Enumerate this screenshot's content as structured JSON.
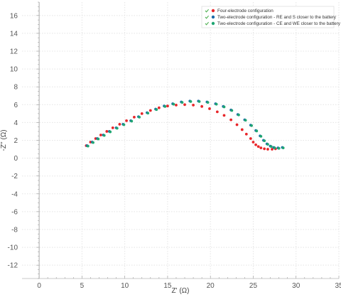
{
  "chart_data": {
    "type": "scatter",
    "xlabel": "Z' (Ω)",
    "ylabel": "-Z'' (Ω)",
    "xlim": [
      -2,
      35
    ],
    "ylim": [
      -13.5,
      17.5
    ],
    "xticks": [
      0,
      5,
      10,
      15,
      20,
      25,
      30,
      35
    ],
    "yticks": [
      -12,
      -10,
      -8,
      -6,
      -4,
      -2,
      0,
      2,
      4,
      6,
      8,
      10,
      12,
      14,
      16
    ],
    "grid": true,
    "legend_position": "top-right",
    "legend_check_color": "#4caf50",
    "series": [
      {
        "name": "Four-electrode configuration",
        "color": "#e8262a",
        "x": [
          5.5,
          6.0,
          6.6,
          7.2,
          7.9,
          8.6,
          9.4,
          10.2,
          11.1,
          12.0,
          13.0,
          14.0,
          15.0,
          16.0,
          17.0,
          18.0,
          19.0,
          19.9,
          20.8,
          21.6,
          22.4,
          23.1,
          23.7,
          24.2,
          24.7,
          25.0,
          25.3,
          25.6,
          25.9,
          26.3,
          26.7,
          27.2,
          27.6
        ],
        "y": [
          1.4,
          1.8,
          2.2,
          2.6,
          3.0,
          3.4,
          3.8,
          4.2,
          4.6,
          5.0,
          5.35,
          5.65,
          5.85,
          5.95,
          6.0,
          5.95,
          5.8,
          5.55,
          5.2,
          4.8,
          4.3,
          3.75,
          3.2,
          2.7,
          2.2,
          1.8,
          1.5,
          1.3,
          1.15,
          1.05,
          1.0,
          1.0,
          1.05
        ]
      },
      {
        "name": "Two-electrode configuration - RE and S closer to the battery",
        "color": "#1b6aa8",
        "x": [
          5.6,
          6.2,
          6.8,
          7.5,
          8.2,
          9.0,
          9.8,
          10.7,
          11.6,
          12.6,
          13.6,
          14.6,
          15.6,
          16.6,
          17.6,
          18.6,
          19.6,
          20.6,
          21.5,
          22.4,
          23.2,
          24.0,
          24.7,
          25.3,
          25.8,
          26.2,
          26.6,
          27.0,
          27.4,
          27.9,
          28.4
        ],
        "y": [
          1.4,
          1.8,
          2.2,
          2.6,
          3.0,
          3.4,
          3.8,
          4.2,
          4.65,
          5.1,
          5.5,
          5.85,
          6.1,
          6.3,
          6.4,
          6.4,
          6.3,
          6.1,
          5.8,
          5.4,
          4.9,
          4.3,
          3.7,
          3.1,
          2.5,
          2.0,
          1.6,
          1.35,
          1.2,
          1.15,
          1.2
        ]
      },
      {
        "name": "Two-electrode configuration - CE and WE closer to the battery",
        "color": "#1fa672",
        "x": [
          5.7,
          6.3,
          6.9,
          7.6,
          8.3,
          9.1,
          9.9,
          10.8,
          11.7,
          12.7,
          13.7,
          14.7,
          15.7,
          16.7,
          17.7,
          18.7,
          19.7,
          20.7,
          21.6,
          22.5,
          23.3,
          24.1,
          24.8,
          25.4,
          25.9,
          26.3,
          26.7,
          27.1,
          27.5,
          28.0,
          28.5
        ],
        "y": [
          1.35,
          1.75,
          2.15,
          2.55,
          2.95,
          3.35,
          3.75,
          4.15,
          4.6,
          5.05,
          5.45,
          5.8,
          6.05,
          6.25,
          6.35,
          6.35,
          6.25,
          6.05,
          5.75,
          5.35,
          4.85,
          4.25,
          3.65,
          3.05,
          2.45,
          1.95,
          1.55,
          1.3,
          1.15,
          1.1,
          1.15
        ]
      }
    ]
  }
}
